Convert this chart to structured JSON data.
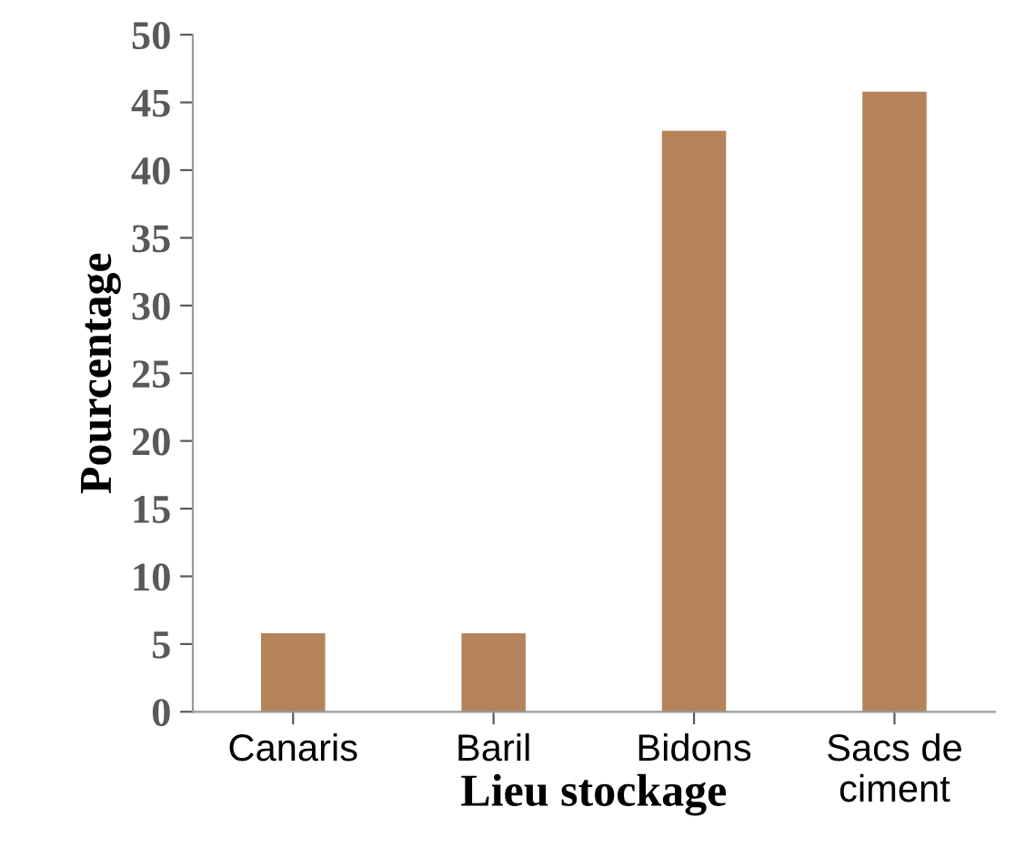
{
  "chart_data": {
    "type": "bar",
    "xlabel": "Lieu stockage",
    "ylabel": "Pourcentage",
    "categories": [
      "Canaris",
      "Baril",
      "Bidons",
      "Sacs de\nciment"
    ],
    "values": [
      5.8,
      5.8,
      42.9,
      45.8
    ],
    "color": "#b5845a",
    "ylim": [
      0,
      50
    ],
    "yticks": [
      0,
      5,
      10,
      15,
      20,
      25,
      30,
      35,
      40,
      45,
      50
    ],
    "grid": false
  }
}
